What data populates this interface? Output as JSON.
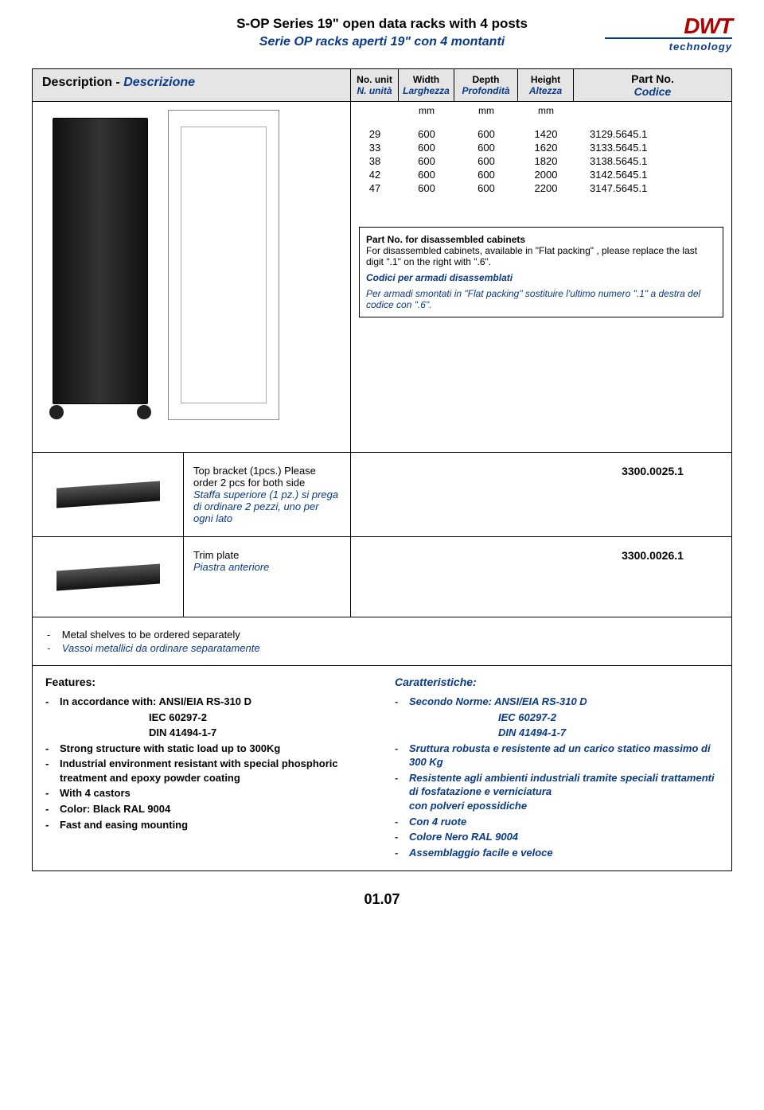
{
  "colors": {
    "blue": "#0a3a8a",
    "red": "#b00000",
    "header_bg": "#e5e5e5",
    "border": "#000000"
  },
  "header": {
    "title_en": "S-OP Series 19\" open data racks with 4 posts",
    "title_it": "Serie OP racks aperti 19\" con 4 montanti",
    "logo_top": "DWT",
    "logo_bottom": "technology"
  },
  "columns": {
    "desc_en": "Description - ",
    "desc_it": "Descrizione",
    "unit_en": "No. unit",
    "unit_it": "N. unità",
    "width_en": "Width",
    "width_it": "Larghezza",
    "depth_en": "Depth",
    "depth_it": "Profondità",
    "height_en": "Height",
    "height_it": "Altezza",
    "part_en": "Part No.",
    "part_it": "Codice",
    "mm": "mm"
  },
  "products": [
    {
      "unit": "29",
      "w": "600",
      "d": "600",
      "h": "1420",
      "part": "3129.5645.1"
    },
    {
      "unit": "33",
      "w": "600",
      "d": "600",
      "h": "1620",
      "part": "3133.5645.1"
    },
    {
      "unit": "38",
      "w": "600",
      "d": "600",
      "h": "1820",
      "part": "3138.5645.1"
    },
    {
      "unit": "42",
      "w": "600",
      "d": "600",
      "h": "2000",
      "part": "3142.5645.1"
    },
    {
      "unit": "47",
      "w": "600",
      "d": "600",
      "h": "2200",
      "part": "3147.5645.1"
    }
  ],
  "note": {
    "en_title": "Part No. for disassembled cabinets",
    "en_body": "For disassembled cabinets, available in \"Flat packing\" , please replace the last digit \".1\" on the right with \".6\".",
    "it_title": "Codici per armadi disassemblati",
    "it_body": "Per armadi smontati in \"Flat packing\" sostituire l'ultimo numero \".1\" a destra del codice con \".6\"."
  },
  "accessories": [
    {
      "desc_en": "Top bracket (1pcs.) Please order 2 pcs for both side",
      "desc_it": "Staffa superiore (1 pz.) si prega di ordinare 2 pezzi, uno per ogni lato",
      "part": "3300.0025.1"
    },
    {
      "desc_en": "Trim plate",
      "desc_it": "Piastra anteriore",
      "part": "3300.0026.1"
    }
  ],
  "separate": {
    "en": "Metal shelves to be ordered separately",
    "it": "Vassoi metallici da ordinare separatamente"
  },
  "features": {
    "en_title": "Features:",
    "en_items": [
      "In accordance with: ANSI/EIA RS-310 D",
      "Strong structure with static load up to 300Kg",
      "Industrial environment resistant with special phosphoric treatment and epoxy powder coating",
      "With 4 castors",
      "Color: Black RAL 9004",
      "Fast and easing mounting"
    ],
    "en_sub1": "IEC 60297-2",
    "en_sub2": "DIN 41494-1-7",
    "it_title": "Caratteristiche:",
    "it_items": [
      "Secondo Norme: ANSI/EIA RS-310 D",
      "Sruttura robusta e resistente ad un carico statico massimo di 300 Kg",
      "Resistente agli ambienti industriali tramite speciali trattamenti di fosfatazione  e verniciatura",
      "Con 4 ruote",
      "Colore Nero RAL 9004",
      "Assemblaggio facile e veloce"
    ],
    "it_sub1": "IEC 60297-2",
    "it_sub2": "DIN 41494-1-7",
    "it_extra": "con polveri epossidiche"
  },
  "page_number": "01.07"
}
